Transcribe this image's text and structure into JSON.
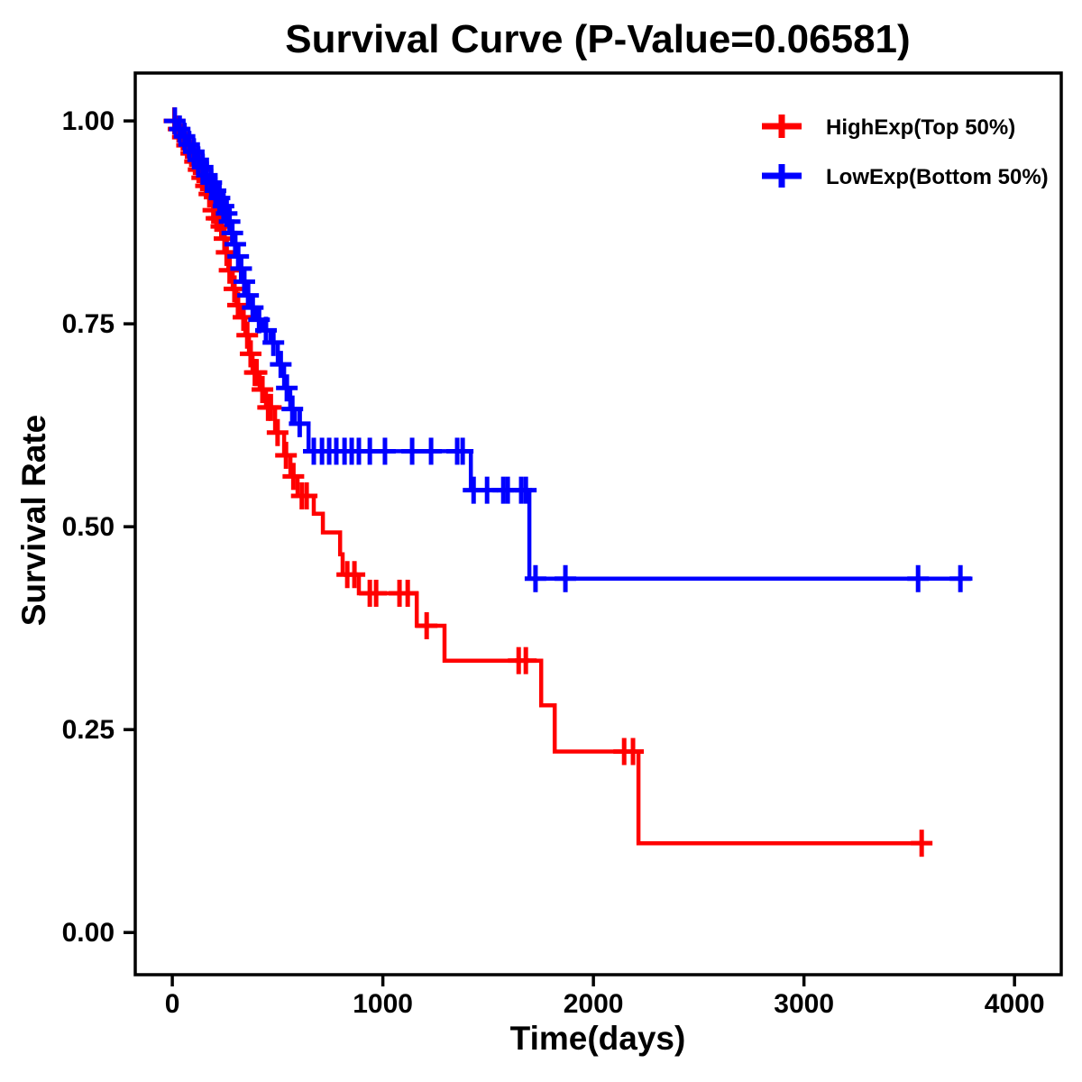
{
  "page": {
    "background": "#FFFFFF"
  },
  "chart_data": {
    "type": "line",
    "subtype": "kaplan-meier-survival-step",
    "title": "Survival Curve (P-Value=0.06581)",
    "p_value": "0.06581",
    "xlabel": "Time(days)",
    "ylabel": "Survival Rate",
    "grid": false,
    "legend_position": "top-right-inside",
    "xlim": [
      -176,
      4222
    ],
    "ylim": [
      -0.052,
      1.059
    ],
    "x_ticks": {
      "values": [
        0,
        1000,
        2000,
        3000,
        4000
      ],
      "labels": [
        "0",
        "1000",
        "2000",
        "3000",
        "4000"
      ]
    },
    "y_ticks": {
      "values": [
        1.0,
        0.75,
        0.5,
        0.25,
        0.0
      ],
      "labels": [
        "1.00",
        "0.75",
        "0.50",
        "0.25",
        "0.00"
      ]
    },
    "series": [
      {
        "name": "HighExp(Top 50%)",
        "color": "#FF0000",
        "end_time": 3600,
        "steps": [
          [
            0,
            1.0
          ],
          [
            18,
            0.99
          ],
          [
            40,
            0.98
          ],
          [
            60,
            0.97
          ],
          [
            80,
            0.96
          ],
          [
            100,
            0.95
          ],
          [
            118,
            0.94
          ],
          [
            135,
            0.93
          ],
          [
            152,
            0.92
          ],
          [
            168,
            0.91
          ],
          [
            184,
            0.9
          ],
          [
            200,
            0.89
          ],
          [
            214,
            0.88
          ],
          [
            227,
            0.87
          ],
          [
            240,
            0.855
          ],
          [
            253,
            0.838
          ],
          [
            266,
            0.816
          ],
          [
            287,
            0.793
          ],
          [
            304,
            0.773
          ],
          [
            330,
            0.758
          ],
          [
            347,
            0.736
          ],
          [
            364,
            0.713
          ],
          [
            381,
            0.69
          ],
          [
            415,
            0.669
          ],
          [
            445,
            0.647
          ],
          [
            488,
            0.616
          ],
          [
            531,
            0.588
          ],
          [
            561,
            0.562
          ],
          [
            595,
            0.538
          ],
          [
            672,
            0.516
          ],
          [
            715,
            0.493
          ],
          [
            797,
            0.466
          ],
          [
            809,
            0.441
          ],
          [
            886,
            0.418
          ],
          [
            1161,
            0.378
          ],
          [
            1293,
            0.335
          ],
          [
            1752,
            0.28
          ],
          [
            1816,
            0.223
          ],
          [
            2214,
            0.11
          ]
        ],
        "censor_marks": [
          [
            10,
            1.0
          ],
          [
            30,
            0.99
          ],
          [
            50,
            0.98
          ],
          [
            70,
            0.97
          ],
          [
            90,
            0.96
          ],
          [
            108,
            0.95
          ],
          [
            125,
            0.94
          ],
          [
            142,
            0.93
          ],
          [
            160,
            0.92
          ],
          [
            176,
            0.91
          ],
          [
            195,
            0.89
          ],
          [
            210,
            0.88
          ],
          [
            222,
            0.88
          ],
          [
            233,
            0.87
          ],
          [
            248,
            0.855
          ],
          [
            258,
            0.838
          ],
          [
            272,
            0.816
          ],
          [
            295,
            0.793
          ],
          [
            312,
            0.773
          ],
          [
            338,
            0.758
          ],
          [
            356,
            0.736
          ],
          [
            372,
            0.713
          ],
          [
            392,
            0.69
          ],
          [
            400,
            0.69
          ],
          [
            428,
            0.669
          ],
          [
            455,
            0.647
          ],
          [
            468,
            0.647
          ],
          [
            500,
            0.616
          ],
          [
            540,
            0.588
          ],
          [
            575,
            0.562
          ],
          [
            615,
            0.538
          ],
          [
            638,
            0.538
          ],
          [
            831,
            0.441
          ],
          [
            865,
            0.441
          ],
          [
            938,
            0.418
          ],
          [
            968,
            0.418
          ],
          [
            1079,
            0.418
          ],
          [
            1118,
            0.418
          ],
          [
            1208,
            0.378
          ],
          [
            1645,
            0.335
          ],
          [
            1679,
            0.335
          ],
          [
            2146,
            0.223
          ],
          [
            2188,
            0.223
          ],
          [
            3559,
            0.11
          ]
        ]
      },
      {
        "name": "LowExp(Bottom 50%)",
        "color": "#0000FF",
        "end_time": 3800,
        "steps": [
          [
            0,
            1.0
          ],
          [
            22,
            0.99
          ],
          [
            45,
            0.981
          ],
          [
            68,
            0.971
          ],
          [
            90,
            0.962
          ],
          [
            112,
            0.952
          ],
          [
            133,
            0.943
          ],
          [
            154,
            0.933
          ],
          [
            174,
            0.924
          ],
          [
            194,
            0.914
          ],
          [
            214,
            0.905
          ],
          [
            233,
            0.895
          ],
          [
            252,
            0.886
          ],
          [
            266,
            0.876
          ],
          [
            278,
            0.862
          ],
          [
            292,
            0.848
          ],
          [
            306,
            0.833
          ],
          [
            320,
            0.818
          ],
          [
            334,
            0.802
          ],
          [
            352,
            0.785
          ],
          [
            372,
            0.77
          ],
          [
            400,
            0.755
          ],
          [
            430,
            0.742
          ],
          [
            467,
            0.727
          ],
          [
            501,
            0.7
          ],
          [
            531,
            0.671
          ],
          [
            560,
            0.645
          ],
          [
            582,
            0.627
          ],
          [
            647,
            0.593
          ],
          [
            1418,
            0.545
          ],
          [
            1696,
            0.436
          ]
        ],
        "censor_marks": [
          [
            12,
            1.0
          ],
          [
            35,
            0.99
          ],
          [
            58,
            0.981
          ],
          [
            80,
            0.971
          ],
          [
            102,
            0.962
          ],
          [
            123,
            0.952
          ],
          [
            144,
            0.943
          ],
          [
            164,
            0.933
          ],
          [
            185,
            0.924
          ],
          [
            205,
            0.914
          ],
          [
            224,
            0.905
          ],
          [
            243,
            0.895
          ],
          [
            258,
            0.886
          ],
          [
            272,
            0.876
          ],
          [
            285,
            0.862
          ],
          [
            299,
            0.848
          ],
          [
            313,
            0.833
          ],
          [
            327,
            0.818
          ],
          [
            342,
            0.802
          ],
          [
            360,
            0.785
          ],
          [
            382,
            0.77
          ],
          [
            412,
            0.755
          ],
          [
            445,
            0.742
          ],
          [
            480,
            0.727
          ],
          [
            515,
            0.7
          ],
          [
            544,
            0.671
          ],
          [
            570,
            0.645
          ],
          [
            605,
            0.627
          ],
          [
            672,
            0.593
          ],
          [
            711,
            0.593
          ],
          [
            745,
            0.593
          ],
          [
            779,
            0.593
          ],
          [
            818,
            0.593
          ],
          [
            852,
            0.593
          ],
          [
            886,
            0.593
          ],
          [
            938,
            0.593
          ],
          [
            1010,
            0.593
          ],
          [
            1139,
            0.593
          ],
          [
            1229,
            0.593
          ],
          [
            1353,
            0.593
          ],
          [
            1379,
            0.593
          ],
          [
            1431,
            0.545
          ],
          [
            1495,
            0.545
          ],
          [
            1572,
            0.545
          ],
          [
            1593,
            0.545
          ],
          [
            1657,
            0.545
          ],
          [
            1679,
            0.545
          ],
          [
            1725,
            0.436
          ],
          [
            1867,
            0.436
          ],
          [
            3542,
            0.436
          ],
          [
            3743,
            0.436
          ]
        ]
      }
    ]
  }
}
